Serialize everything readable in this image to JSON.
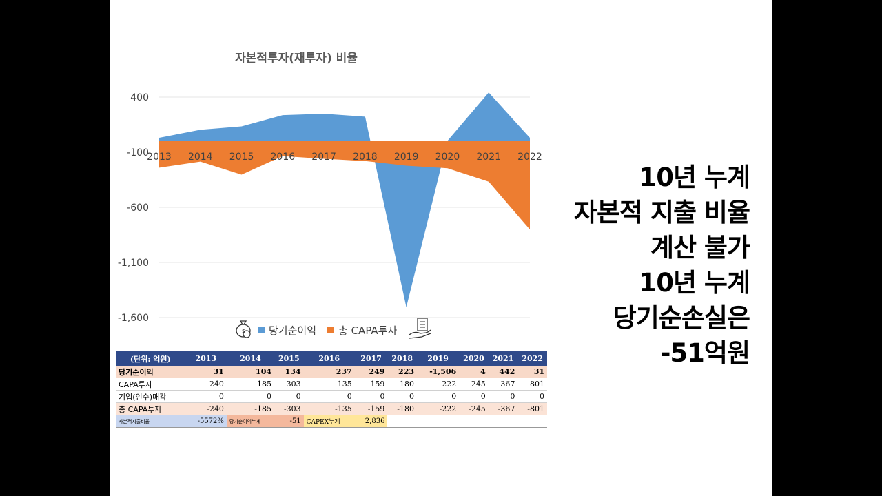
{
  "colors": {
    "profit": "#5b9bd5",
    "capa": "#ed7d31",
    "header": "#2f4a8a"
  },
  "legend_icons": [
    "money-bag-icon",
    "hand-documents-icon"
  ],
  "chart_data": {
    "type": "area",
    "title": "자본적투자(재투자) 비율",
    "x": [
      "2013",
      "2014",
      "2015",
      "2016",
      "2017",
      "2018",
      "2019",
      "2020",
      "2021",
      "2022"
    ],
    "series": [
      {
        "name": "당기순이익",
        "values": [
          31,
          104,
          134,
          237,
          249,
          223,
          -1506,
          4,
          442,
          31
        ]
      },
      {
        "name": "총 CAPA투자",
        "values": [
          -240,
          -185,
          -303,
          -135,
          -159,
          -180,
          -222,
          -245,
          -367,
          -801
        ]
      }
    ],
    "yticks": [
      400,
      -100,
      -600,
      -1100,
      -1600
    ],
    "ytick_labels": [
      "400",
      "-100",
      "-600",
      "-1,100",
      "-1,600"
    ],
    "ylim": [
      -1600,
      450
    ],
    "grid": true,
    "legend": "bottom"
  },
  "table": {
    "headers": [
      "(단위: 억원)",
      "2013",
      "2014",
      "2015",
      "2016",
      "2017",
      "2018",
      "2019",
      "2020",
      "2021",
      "2022"
    ],
    "rows": [
      {
        "label": "당기순이익",
        "values": [
          "31",
          "104",
          "134",
          "237",
          "249",
          "223",
          "-1,506",
          "4",
          "442",
          "31"
        ]
      },
      {
        "label": "CAPA투자",
        "values": [
          "240",
          "185",
          "303",
          "135",
          "159",
          "180",
          "222",
          "245",
          "367",
          "801"
        ]
      },
      {
        "label": "기업(인수)매각",
        "values": [
          "0",
          "0",
          "0",
          "0",
          "0",
          "0",
          "0",
          "0",
          "0",
          "0"
        ]
      },
      {
        "label": "총 CAPA투자",
        "values": [
          "-240",
          "-185",
          "-303",
          "-135",
          "-159",
          "-180",
          "-222",
          "-245",
          "-367",
          "-801"
        ]
      }
    ],
    "summary": {
      "ratio_label": "자본적지출비율",
      "ratio_value": "-5572%",
      "profit_label": "당기순이익누계",
      "profit_value": "-51",
      "capex_label": "CAPEX누계",
      "capex_value": "2,836"
    }
  },
  "overlay": {
    "lines": [
      "10년 누계",
      "자본적 지출 비율",
      "계산 불가",
      "10년 누계",
      "당기순손실은",
      "-51억원"
    ]
  }
}
